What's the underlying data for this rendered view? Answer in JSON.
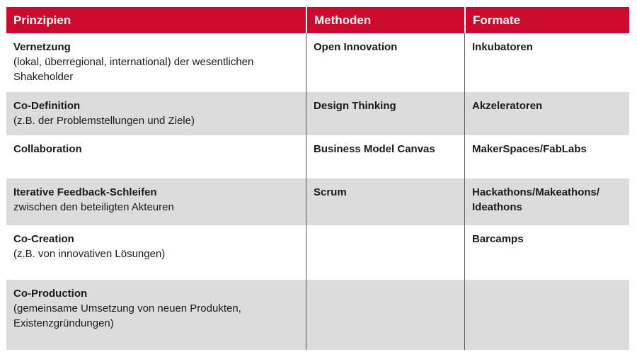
{
  "headers": [
    "Prinzipien",
    "Methoden",
    "Formate"
  ],
  "rows": [
    {
      "principle": "Vernetzung",
      "detail": "(lokal, überregional, international) der wesentlichen Shakeholder",
      "method": "Open Innovation",
      "format": "Inkubatoren"
    },
    {
      "principle": "Co-Definition",
      "detail": "(z.B. der Problemstellungen und Ziele)",
      "method": "Design Thinking",
      "format": "Akzeleratoren"
    },
    {
      "principle": "Collaboration",
      "detail": "",
      "method": "Business Model Canvas",
      "format": "MakerSpaces/FabLabs"
    },
    {
      "principle": "Iterative Feedback-Schleifen",
      "detail": "zwischen den beteiligten Akteuren",
      "method": "Scrum",
      "format": "Hackathons/Makeathons/ Ideathons"
    },
    {
      "principle": "Co-Creation",
      "detail": "(z.B. von innovativen Lösungen)",
      "method": "",
      "format": "Barcamps"
    },
    {
      "principle": "Co-Production",
      "detail": "(gemeinsame Umsetzung von neuen Produkten, Existenzgründungen)",
      "method": "",
      "format": ""
    }
  ],
  "colors": {
    "header": "#cc0a2f",
    "stripe": "#dcdcdc"
  }
}
